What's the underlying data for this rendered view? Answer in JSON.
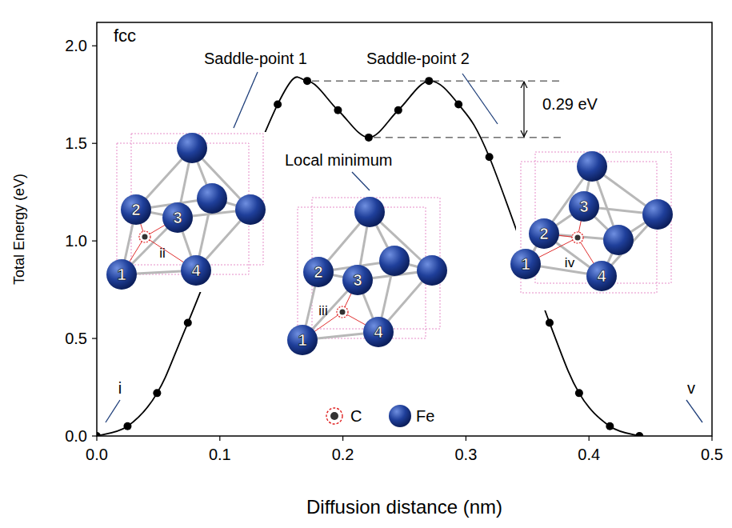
{
  "chart_data": {
    "type": "line",
    "x_label": "Diffusion distance (nm)",
    "y_label": "Total Energy (eV)",
    "x": [
      0,
      0.025,
      0.049,
      0.074,
      0.147,
      0.171,
      0.196,
      0.221,
      0.245,
      0.27,
      0.294,
      0.319,
      0.368,
      0.392,
      0.417,
      0.441
    ],
    "values": [
      0,
      0.05,
      0.22,
      0.58,
      1.7,
      1.82,
      1.67,
      1.53,
      1.67,
      1.82,
      1.7,
      1.43,
      0.58,
      0.22,
      0.05,
      0
    ],
    "color": "#000000",
    "marker": "circle",
    "line_style": "solid",
    "xlim": [
      0,
      0.5
    ],
    "ylim": [
      0,
      2.12
    ],
    "xticks": [
      {
        "value": 0,
        "label": "0.0"
      },
      {
        "value": 0.1,
        "label": "0.1"
      },
      {
        "value": 0.2,
        "label": "0.2"
      },
      {
        "value": 0.3,
        "label": "0.3"
      },
      {
        "value": 0.4,
        "label": "0.4"
      },
      {
        "value": 0.5,
        "label": "0.5"
      }
    ],
    "yticks": [
      {
        "value": 0,
        "label": "0.0"
      },
      {
        "value": 0.5,
        "label": "0.5"
      },
      {
        "value": 1,
        "label": "1.0"
      },
      {
        "value": 1.5,
        "label": "1.5"
      },
      {
        "value": 2,
        "label": "2.0"
      }
    ],
    "grid": false,
    "annotations": [
      "fcc",
      "Saddle-point 1",
      "Saddle-point 2",
      "Local minimum",
      "0.29 eV",
      "i",
      "v"
    ],
    "insets": [
      {
        "carbon_site": "ii",
        "atoms": [
          "1",
          "2",
          "3",
          "4"
        ]
      },
      {
        "carbon_site": "iii",
        "atoms": [
          "1",
          "2",
          "3",
          "4"
        ]
      },
      {
        "carbon_site": "iv",
        "atoms": [
          "1",
          "2",
          "3",
          "4"
        ]
      }
    ],
    "legend_items": [
      "C",
      "Fe"
    ]
  }
}
